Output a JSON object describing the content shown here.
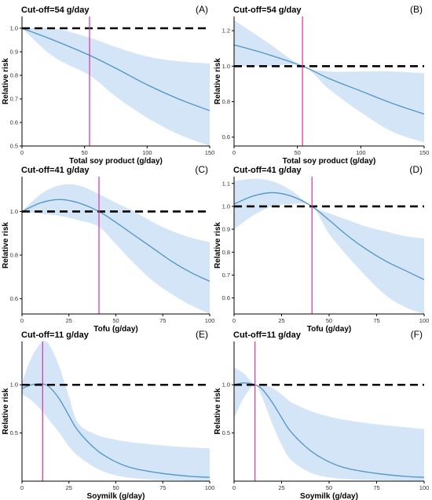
{
  "figure": {
    "colors": {
      "band": "#d3e5f6",
      "curve": "#4f95c6",
      "reference": "#000000",
      "cutoff": "#d63fae"
    }
  },
  "chart_data": [
    {
      "panel_label": "(A)",
      "type": "line",
      "title": "Cut-off=54 g/day",
      "xlabel": "Total soy product (g/day)",
      "ylabel": "Relative risk",
      "xlim": [
        0,
        150
      ],
      "ylim": [
        0.5,
        1.05
      ],
      "xticks": [
        0,
        50,
        100,
        150
      ],
      "yticks": [
        0.5,
        0.6,
        0.7,
        0.8,
        0.9,
        1.0
      ],
      "xtick_labels": [
        "0",
        "50",
        "100",
        "150"
      ],
      "ytick_labels": [
        "0.5",
        "0.6",
        "0.7",
        "0.8",
        "0.9",
        "1.0"
      ],
      "reference_y": 1.0,
      "cutoff_x": 54,
      "x": [
        0,
        25,
        54,
        75,
        100,
        125,
        150
      ],
      "estimate": [
        1.0,
        0.95,
        0.885,
        0.83,
        0.76,
        0.7,
        0.65
      ],
      "lower": [
        1.0,
        0.88,
        0.8,
        0.71,
        0.62,
        0.55,
        0.5
      ],
      "upper": [
        1.0,
        1.0,
        0.96,
        0.92,
        0.88,
        0.86,
        0.85
      ]
    },
    {
      "panel_label": "(B)",
      "type": "line",
      "title": "Cut-off=54 g/day",
      "xlabel": "Total soy product (g/day)",
      "ylabel": "Relative risk",
      "xlim": [
        0,
        150
      ],
      "ylim": [
        0.55,
        1.28
      ],
      "xticks": [
        0,
        50,
        100,
        150
      ],
      "yticks": [
        0.6,
        0.8,
        1.0,
        1.2
      ],
      "xtick_labels": [
        "0",
        "50",
        "100",
        "150"
      ],
      "ytick_labels": [
        "0.6",
        "0.8",
        "1.0",
        "1.2"
      ],
      "reference_y": 1.0,
      "cutoff_x": 54,
      "x": [
        0,
        25,
        54,
        75,
        100,
        125,
        150
      ],
      "estimate": [
        1.12,
        1.07,
        1.0,
        0.93,
        0.86,
        0.79,
        0.73
      ],
      "lower": [
        1.0,
        1.0,
        1.0,
        0.87,
        0.74,
        0.63,
        0.57
      ],
      "upper": [
        1.26,
        1.14,
        1.0,
        0.97,
        0.97,
        0.97,
        0.96
      ]
    },
    {
      "panel_label": "(C)",
      "type": "line",
      "title": "Cut-off=41 g/day",
      "xlabel": "Tofu (g/day)",
      "ylabel": "Relative risk",
      "xlim": [
        0,
        100
      ],
      "ylim": [
        0.53,
        1.16
      ],
      "xticks": [
        0,
        25,
        50,
        75,
        100
      ],
      "yticks": [
        0.6,
        0.8,
        1.0
      ],
      "xtick_labels": [
        "0",
        "25",
        "50",
        "75",
        "100"
      ],
      "ytick_labels": [
        "0.6",
        "0.8",
        "1.0"
      ],
      "reference_y": 1.0,
      "cutoff_x": 41,
      "x": [
        0,
        10,
        20,
        30,
        41,
        50,
        60,
        70,
        80,
        90,
        100
      ],
      "estimate": [
        1.0,
        1.04,
        1.055,
        1.04,
        1.0,
        0.95,
        0.89,
        0.83,
        0.77,
        0.72,
        0.68
      ],
      "lower": [
        1.0,
        0.99,
        0.98,
        0.96,
        0.93,
        0.85,
        0.76,
        0.68,
        0.62,
        0.57,
        0.53
      ],
      "upper": [
        1.0,
        1.08,
        1.12,
        1.12,
        1.08,
        1.04,
        1.0,
        0.95,
        0.91,
        0.88,
        0.86
      ]
    },
    {
      "panel_label": "(D)",
      "type": "line",
      "title": "Cut-off=41 g/day",
      "xlabel": "Tofu (g/day)",
      "ylabel": "Relative risk",
      "xlim": [
        0,
        100
      ],
      "ylim": [
        0.53,
        1.13
      ],
      "xticks": [
        0,
        25,
        50,
        75,
        100
      ],
      "yticks": [
        0.6,
        0.7,
        0.8,
        0.9,
        1.0,
        1.1
      ],
      "xtick_labels": [
        "0",
        "25",
        "50",
        "75",
        "100"
      ],
      "ytick_labels": [
        "0.6",
        "0.7",
        "0.8",
        "0.9",
        "1.0",
        "1.1"
      ],
      "reference_y": 1.0,
      "cutoff_x": 41,
      "x": [
        0,
        10,
        20,
        30,
        41,
        50,
        60,
        70,
        80,
        90,
        100
      ],
      "estimate": [
        1.01,
        1.045,
        1.06,
        1.045,
        1.0,
        0.94,
        0.87,
        0.81,
        0.76,
        0.72,
        0.68
      ],
      "lower": [
        0.9,
        0.96,
        1.0,
        1.01,
        1.0,
        0.88,
        0.78,
        0.69,
        0.61,
        0.56,
        0.53
      ],
      "upper": [
        1.11,
        1.12,
        1.11,
        1.07,
        1.0,
        0.97,
        0.94,
        0.91,
        0.89,
        0.87,
        0.86
      ]
    },
    {
      "panel_label": "(E)",
      "type": "line",
      "title": "Cut-off=11 g/day",
      "xlabel": "Soymilk (g/day)",
      "ylabel": "Relative risk",
      "xlim": [
        0,
        100
      ],
      "ylim": [
        0.0,
        1.45
      ],
      "xticks": [
        0,
        25,
        50,
        75,
        100
      ],
      "yticks": [
        0.5,
        1.0
      ],
      "xtick_labels": [
        "0",
        "25",
        "50",
        "75",
        "100"
      ],
      "ytick_labels": [
        "0.5",
        "1.0"
      ],
      "reference_y": 1.0,
      "cutoff_x": 11,
      "x": [
        0,
        5,
        11,
        15,
        20,
        25,
        30,
        40,
        50,
        60,
        75,
        90,
        100
      ],
      "estimate": [
        0.96,
        1.0,
        1.01,
        0.97,
        0.85,
        0.68,
        0.52,
        0.32,
        0.2,
        0.13,
        0.08,
        0.05,
        0.04
      ],
      "lower": [
        0.9,
        0.84,
        0.72,
        0.62,
        0.5,
        0.36,
        0.26,
        0.13,
        0.06,
        0.03,
        0.01,
        0.005,
        0.003
      ],
      "upper": [
        1.02,
        1.28,
        1.45,
        1.4,
        1.18,
        0.88,
        0.6,
        0.48,
        0.43,
        0.4,
        0.37,
        0.35,
        0.34
      ]
    },
    {
      "panel_label": "(F)",
      "type": "line",
      "title": "Cut-off=11 g/day",
      "xlabel": "Soymilk (g/day)",
      "ylabel": "Relative risk",
      "xlim": [
        0,
        100
      ],
      "ylim": [
        0.0,
        1.45
      ],
      "xticks": [
        0,
        25,
        50,
        75,
        100
      ],
      "yticks": [
        0.5,
        1.0
      ],
      "xtick_labels": [
        "0",
        "25",
        "50",
        "75",
        "100"
      ],
      "ytick_labels": [
        "0.5",
        "1.0"
      ],
      "reference_y": 1.0,
      "cutoff_x": 11,
      "x": [
        0,
        5,
        11,
        15,
        20,
        25,
        30,
        40,
        50,
        60,
        75,
        90,
        100
      ],
      "estimate": [
        1.0,
        1.02,
        1.0,
        0.95,
        0.82,
        0.66,
        0.51,
        0.32,
        0.2,
        0.13,
        0.08,
        0.05,
        0.04
      ],
      "lower": [
        0.65,
        0.86,
        1.0,
        0.86,
        0.6,
        0.38,
        0.22,
        0.09,
        0.04,
        0.02,
        0.01,
        0.005,
        0.003
      ],
      "upper": [
        1.18,
        1.12,
        1.0,
        1.0,
        0.97,
        0.9,
        0.82,
        0.73,
        0.67,
        0.63,
        0.59,
        0.56,
        0.54
      ]
    }
  ]
}
